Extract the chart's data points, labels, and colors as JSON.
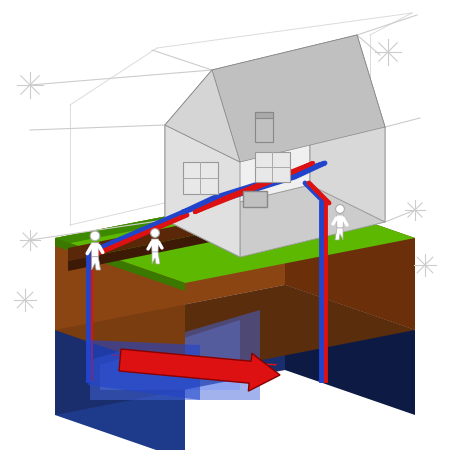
{
  "bg_color": "#ffffff",
  "grass_color": "#5cb800",
  "grass_dark": "#3d8a00",
  "grass_right": "#4aa000",
  "soil_front": "#8b4513",
  "soil_left": "#7a3d10",
  "soil_right": "#5a2808",
  "underground_top": "#5a2d0c",
  "underground_front": "#1a2e6e",
  "underground_left": "#1e3a8a",
  "underground_right": "#0d1a44",
  "underground_floor": "#1a2e6e",
  "blue_glow": "#3355cc",
  "arrow_blue": "#2244cc",
  "arrow_red": "#dd1111",
  "pipe_blue": "#2244cc",
  "pipe_red": "#dd1111",
  "house_wall_front": "#e8e8e8",
  "house_wall_right": "#cccccc",
  "house_wall_left": "#d5d5d5",
  "house_base": "#d0d0d0",
  "roof_front": "#c8c8c8",
  "roof_right": "#aaaaaa",
  "chimney_color": "#bbbbbb",
  "blueprint_color": "#cccccc",
  "person_color": "#ffffff",
  "person_outline": "#aaaaaa",
  "window_color": "#e0e0e0",
  "interior_bg": "#f0f0f0"
}
